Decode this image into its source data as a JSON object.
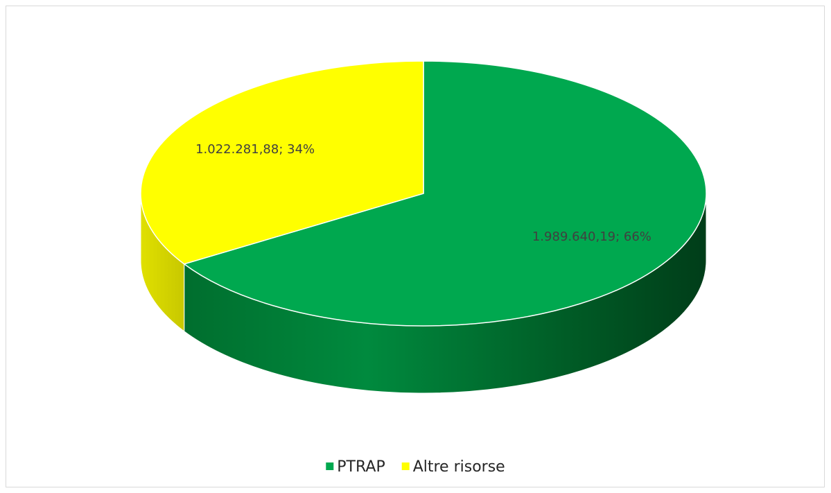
{
  "chart_data": {
    "type": "pie",
    "categories": [
      "PTRAP",
      "Altre risorse"
    ],
    "values": [
      1989640.19,
      1022281.88
    ],
    "value_labels": [
      "1.989.640,19; 66%",
      "1.022.281,88; 34%"
    ],
    "colors": [
      "#00a84f",
      "#ffff00"
    ],
    "legend": "bottom"
  }
}
